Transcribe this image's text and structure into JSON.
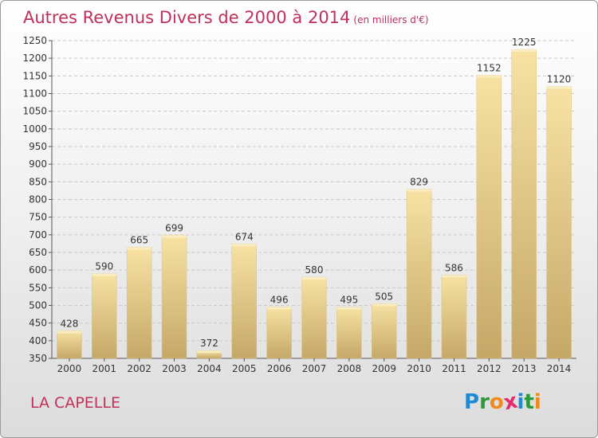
{
  "chart_data": {
    "type": "bar",
    "title": "Autres Revenus Divers de 2000 à 2014",
    "subtitle": "(en milliers d'€)",
    "categories": [
      "2000",
      "2001",
      "2002",
      "2003",
      "2004",
      "2005",
      "2006",
      "2007",
      "2008",
      "2009",
      "2010",
      "2011",
      "2012",
      "2013",
      "2014"
    ],
    "values": [
      428,
      590,
      665,
      699,
      372,
      674,
      496,
      580,
      495,
      505,
      829,
      586,
      1152,
      1225,
      1120
    ],
    "ylim": [
      350,
      1250
    ],
    "yticks": [
      350,
      400,
      450,
      500,
      550,
      600,
      650,
      700,
      750,
      800,
      850,
      900,
      950,
      1000,
      1050,
      1100,
      1150,
      1200,
      1250
    ],
    "grid": true,
    "bar_color": "#e8cf8a"
  },
  "location": "LA CAPELLE",
  "logo": {
    "text": "Proxiti",
    "letter_colors": [
      "#1e8ad6",
      "#2a9a3a",
      "#f08a1a",
      "#e32b6e",
      "#1e8ad6",
      "#2a9a3a",
      "#f08a1a"
    ]
  }
}
